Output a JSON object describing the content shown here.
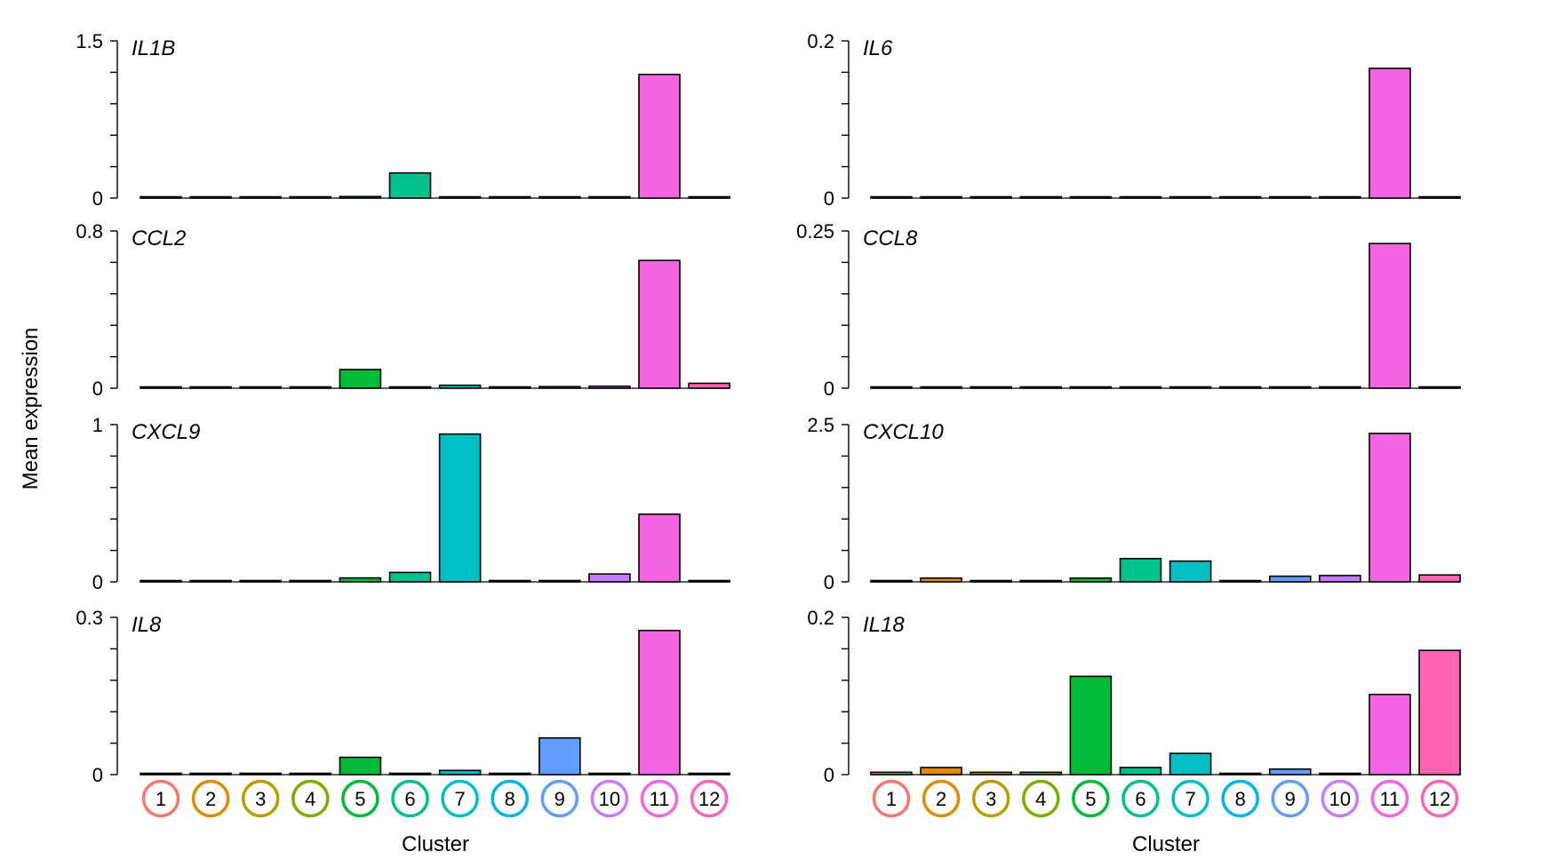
{
  "ylabel": "Mean expression",
  "xlabel": "Cluster",
  "clusters": [
    "1",
    "2",
    "3",
    "4",
    "5",
    "6",
    "7",
    "8",
    "9",
    "10",
    "11",
    "12"
  ],
  "cluster_colors": [
    "#F8766D",
    "#DE8C00",
    "#B79F00",
    "#7CAE00",
    "#00BA38",
    "#00C08B",
    "#00BFC4",
    "#00B4F0",
    "#619CFF",
    "#C77CFF",
    "#F564E3",
    "#FF64B0"
  ],
  "chart_data": [
    {
      "type": "bar",
      "gene": "IL1B",
      "categories": [
        "1",
        "2",
        "3",
        "4",
        "5",
        "6",
        "7",
        "8",
        "9",
        "10",
        "11",
        "12"
      ],
      "values": [
        0.005,
        0.008,
        0.003,
        0.003,
        0.015,
        0.24,
        0.01,
        0.003,
        0.003,
        0.003,
        1.18,
        0.003
      ],
      "ylim": [
        0,
        1.5
      ],
      "yticks": [
        "0",
        "1.5"
      ],
      "ytick_values": [
        0,
        1.5
      ],
      "minor_ticks": 5
    },
    {
      "type": "bar",
      "gene": "IL6",
      "categories": [
        "1",
        "2",
        "3",
        "4",
        "5",
        "6",
        "7",
        "8",
        "9",
        "10",
        "11",
        "12"
      ],
      "values": [
        0.001,
        0.001,
        0.001,
        0.001,
        0.001,
        0.001,
        0.001,
        0.001,
        0.001,
        0.001,
        0.165,
        0.001
      ],
      "ylim": [
        0,
        0.2
      ],
      "yticks": [
        "0",
        "0.2"
      ],
      "ytick_values": [
        0,
        0.2
      ],
      "minor_ticks": 5
    },
    {
      "type": "bar",
      "gene": "CCL2",
      "categories": [
        "1",
        "2",
        "3",
        "4",
        "5",
        "6",
        "7",
        "8",
        "9",
        "10",
        "11",
        "12"
      ],
      "values": [
        0.003,
        0.005,
        0.003,
        0.003,
        0.095,
        0.006,
        0.015,
        0.003,
        0.008,
        0.01,
        0.65,
        0.025
      ],
      "ylim": [
        0,
        0.8
      ],
      "yticks": [
        "0",
        "0.8"
      ],
      "ytick_values": [
        0,
        0.8
      ],
      "minor_ticks": 5
    },
    {
      "type": "bar",
      "gene": "CCL8",
      "categories": [
        "1",
        "2",
        "3",
        "4",
        "5",
        "6",
        "7",
        "8",
        "9",
        "10",
        "11",
        "12"
      ],
      "values": [
        0.001,
        0.002,
        0.001,
        0.001,
        0.001,
        0.001,
        0.001,
        0.001,
        0.001,
        0.001,
        0.23,
        0.001
      ],
      "ylim": [
        0,
        0.25
      ],
      "yticks": [
        "0",
        "0.25"
      ],
      "ytick_values": [
        0,
        0.25
      ],
      "minor_ticks": 5
    },
    {
      "type": "bar",
      "gene": "CXCL9",
      "categories": [
        "1",
        "2",
        "3",
        "4",
        "5",
        "6",
        "7",
        "8",
        "9",
        "10",
        "11",
        "12"
      ],
      "values": [
        0.003,
        0.006,
        0.004,
        0.003,
        0.025,
        0.06,
        0.94,
        0.003,
        0.008,
        0.05,
        0.43,
        0.003
      ],
      "ylim": [
        0,
        1
      ],
      "yticks": [
        "0",
        "1"
      ],
      "ytick_values": [
        0,
        1
      ],
      "minor_ticks": 5
    },
    {
      "type": "bar",
      "gene": "CXCL10",
      "categories": [
        "1",
        "2",
        "3",
        "4",
        "5",
        "6",
        "7",
        "8",
        "9",
        "10",
        "11",
        "12"
      ],
      "values": [
        0.015,
        0.06,
        0.008,
        0.01,
        0.06,
        0.37,
        0.33,
        0.005,
        0.09,
        0.1,
        2.36,
        0.11
      ],
      "ylim": [
        0,
        2.5
      ],
      "yticks": [
        "0",
        "2.5"
      ],
      "ytick_values": [
        0,
        2.5
      ],
      "minor_ticks": 5
    },
    {
      "type": "bar",
      "gene": "IL8",
      "categories": [
        "1",
        "2",
        "3",
        "4",
        "5",
        "6",
        "7",
        "8",
        "9",
        "10",
        "11",
        "12"
      ],
      "values": [
        0.001,
        0.002,
        0.001,
        0.001,
        0.033,
        0.001,
        0.008,
        0.001,
        0.07,
        0.001,
        0.275,
        0.001
      ],
      "ylim": [
        0,
        0.3
      ],
      "yticks": [
        "0",
        "0.3"
      ],
      "ytick_values": [
        0,
        0.3
      ],
      "minor_ticks": 5
    },
    {
      "type": "bar",
      "gene": "IL18",
      "categories": [
        "1",
        "2",
        "3",
        "4",
        "5",
        "6",
        "7",
        "8",
        "9",
        "10",
        "11",
        "12"
      ],
      "values": [
        0.003,
        0.009,
        0.003,
        0.003,
        0.125,
        0.009,
        0.027,
        0.001,
        0.007,
        0.001,
        0.102,
        0.158
      ],
      "ylim": [
        0,
        0.2
      ],
      "yticks": [
        "0",
        "0.2"
      ],
      "ytick_values": [
        0,
        0.2
      ],
      "minor_ticks": 5
    }
  ]
}
